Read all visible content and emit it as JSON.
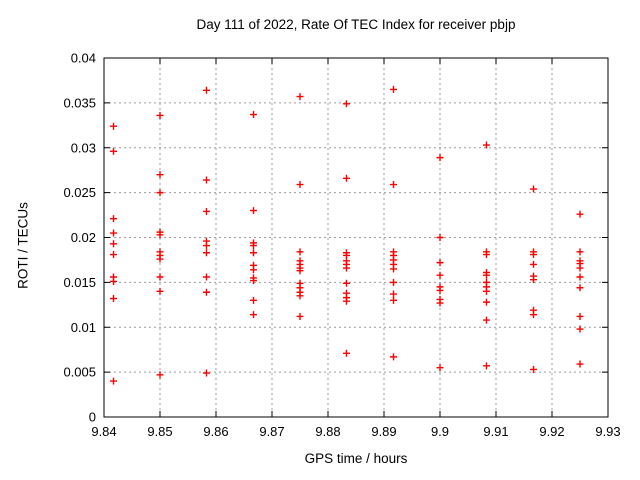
{
  "figure": {
    "title": "Day 111 of 2022, Rate Of TEC Index for receiver pbjp",
    "xlabel": "GPS time / hours",
    "ylabel": "ROTI / TECUs"
  },
  "colors": {
    "marker": "#ff0000",
    "grid": "#9c9c9c",
    "axis": "#000000",
    "background": "#ffffff",
    "text": "#000000"
  },
  "chart_data": {
    "type": "scatter",
    "title": "Day 111 of 2022, Rate Of TEC Index for receiver pbjp",
    "xlabel": "GPS time / hours",
    "ylabel": "ROTI / TECUs",
    "xlim": [
      9.84,
      9.93
    ],
    "ylim": [
      0,
      0.04
    ],
    "grid": true,
    "legend": "none",
    "marker": "plus",
    "marker_color": "#ff0000",
    "xticks": [
      {
        "value": 9.84,
        "label": "9.84"
      },
      {
        "value": 9.85,
        "label": "9.85"
      },
      {
        "value": 9.86,
        "label": "9.86"
      },
      {
        "value": 9.87,
        "label": "9.87"
      },
      {
        "value": 9.88,
        "label": "9.88"
      },
      {
        "value": 9.89,
        "label": "9.89"
      },
      {
        "value": 9.9,
        "label": "9.9"
      },
      {
        "value": 9.91,
        "label": "9.91"
      },
      {
        "value": 9.92,
        "label": "9.92"
      },
      {
        "value": 9.93,
        "label": "9.93"
      }
    ],
    "yticks": [
      {
        "value": 0.0,
        "label": "0"
      },
      {
        "value": 0.005,
        "label": "0.005"
      },
      {
        "value": 0.01,
        "label": "0.01"
      },
      {
        "value": 0.015,
        "label": "0.015"
      },
      {
        "value": 0.02,
        "label": "0.02"
      },
      {
        "value": 0.025,
        "label": "0.025"
      },
      {
        "value": 0.03,
        "label": "0.03"
      },
      {
        "value": 0.035,
        "label": "0.035"
      },
      {
        "value": 0.04,
        "label": "0.04"
      }
    ],
    "series": [
      {
        "name": "ROTI",
        "groups": [
          {
            "x": 9.8417,
            "y": [
              0.0324,
              0.0296,
              0.0221,
              0.0205,
              0.0193,
              0.0181,
              0.0156,
              0.0151,
              0.0132,
              0.004
            ]
          },
          {
            "x": 9.85,
            "y": [
              0.0336,
              0.027,
              0.025,
              0.0206,
              0.0203,
              0.0184,
              0.018,
              0.0176,
              0.0156,
              0.014,
              0.0047
            ]
          },
          {
            "x": 9.8583,
            "y": [
              0.0364,
              0.0264,
              0.0229,
              0.0196,
              0.0191,
              0.0183,
              0.0156,
              0.0139,
              0.0049
            ]
          },
          {
            "x": 9.8667,
            "y": [
              0.0337,
              0.023,
              0.0194,
              0.0191,
              0.0183,
              0.0169,
              0.0164,
              0.0155,
              0.0152,
              0.013,
              0.0114
            ]
          },
          {
            "x": 9.875,
            "y": [
              0.0357,
              0.0259,
              0.0184,
              0.0174,
              0.017,
              0.0166,
              0.0163,
              0.0149,
              0.0144,
              0.0139,
              0.0135,
              0.0112
            ]
          },
          {
            "x": 9.8833,
            "y": [
              0.0349,
              0.0266,
              0.0183,
              0.018,
              0.0174,
              0.017,
              0.0166,
              0.0149,
              0.0138,
              0.0133,
              0.0129,
              0.0071
            ]
          },
          {
            "x": 9.8917,
            "y": [
              0.0365,
              0.0259,
              0.0184,
              0.018,
              0.0175,
              0.017,
              0.0165,
              0.015,
              0.0137,
              0.013,
              0.0067
            ]
          },
          {
            "x": 9.9,
            "y": [
              0.0289,
              0.02,
              0.0172,
              0.0158,
              0.0145,
              0.0141,
              0.0131,
              0.0127,
              0.0055
            ]
          },
          {
            "x": 9.9083,
            "y": [
              0.0303,
              0.0184,
              0.0181,
              0.0161,
              0.0158,
              0.015,
              0.0145,
              0.014,
              0.0128,
              0.0108,
              0.0057
            ]
          },
          {
            "x": 9.9167,
            "y": [
              0.0254,
              0.0184,
              0.0181,
              0.017,
              0.0157,
              0.0153,
              0.0119,
              0.0114,
              0.0053
            ]
          },
          {
            "x": 9.925,
            "y": [
              0.0226,
              0.0184,
              0.0174,
              0.0171,
              0.0166,
              0.0156,
              0.0144,
              0.0112,
              0.0098,
              0.0059
            ]
          }
        ]
      }
    ]
  }
}
